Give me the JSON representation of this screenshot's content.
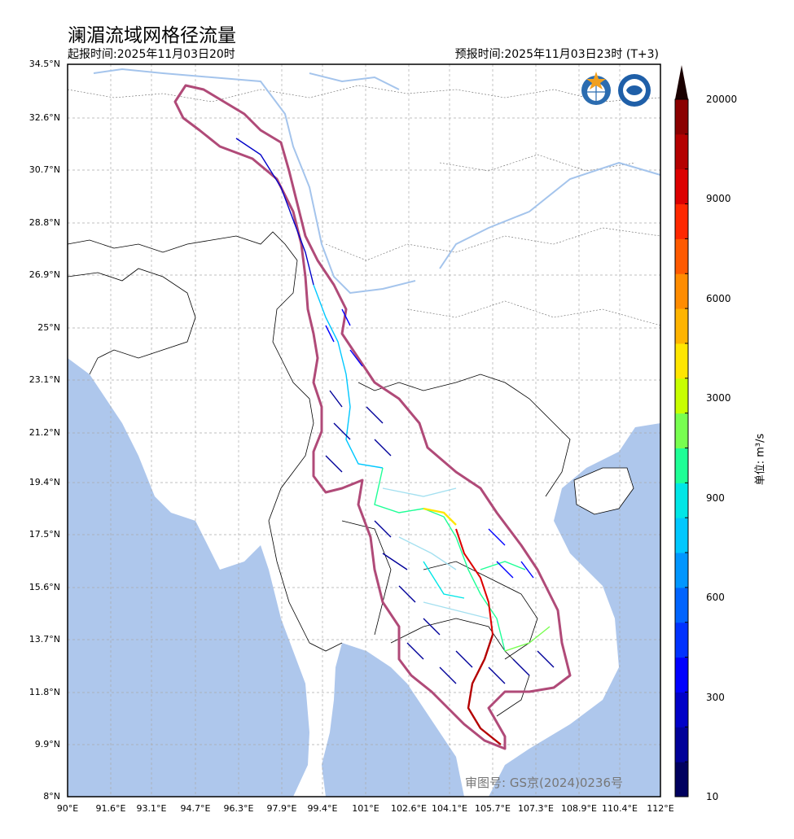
{
  "title": "澜湄流域网格径流量",
  "issue_time": "起报时间:2025年11月03日20时",
  "valid_time": "预报时间:2025年11月03日23时 (T+3)",
  "unit_label": "单位: m³/s",
  "approval_number": "审图号: GS京(2024)0236号",
  "lat_ticks": [
    "34.5°N",
    "32.6°N",
    "30.7°N",
    "28.8°N",
    "26.9°N",
    "25°N",
    "23.1°N",
    "21.2°N",
    "19.4°N",
    "17.5°N",
    "15.6°N",
    "13.7°N",
    "11.8°N",
    "9.9°N",
    "8°N"
  ],
  "lon_ticks": [
    "90°E",
    "91.6°E",
    "93.1°E",
    "94.7°E",
    "96.3°E",
    "97.9°E",
    "99.4°E",
    "101°E",
    "102.6°E",
    "104.1°E",
    "105.7°E",
    "107.3°E",
    "108.9°E",
    "110.4°E",
    "112°E"
  ],
  "colorbar": {
    "labels": [
      "20000",
      "9000",
      "6000",
      "3000",
      "900",
      "600",
      "300",
      "10"
    ],
    "colors": [
      "#00005f",
      "#000099",
      "#0000c8",
      "#0000ff",
      "#0032ff",
      "#0064ff",
      "#0096ff",
      "#00c8ff",
      "#00e6e6",
      "#1eff96",
      "#78ff50",
      "#c8ff00",
      "#ffe600",
      "#ffb400",
      "#ff8c00",
      "#ff5a00",
      "#ff2800",
      "#dc0000",
      "#b40000",
      "#8b0000"
    ],
    "max_color": "#1a0000"
  },
  "colors": {
    "ocean": "#aec7ec",
    "basin_outline": "#b04a78",
    "river": "#a4c4ec"
  },
  "logos": [
    "wmo-logo",
    "cma-logo"
  ]
}
